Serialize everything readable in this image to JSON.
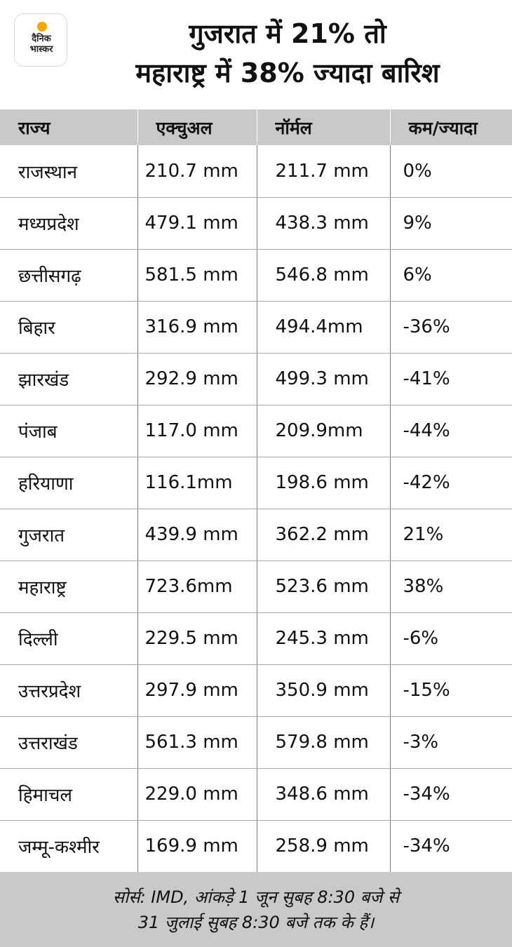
{
  "logo": {
    "line1": "दैनिक",
    "line2": "भास्कर",
    "accent": "#f7a600"
  },
  "title": {
    "line1": "गुजरात में 21% तो",
    "line2": "महाराष्ट्र में 38% ज्यादा बारिश"
  },
  "table": {
    "headers": [
      "राज्य",
      "एक्चुअल",
      "नॉर्मल",
      "कम/ज्यादा"
    ],
    "rows": [
      [
        "राजस्थान",
        "210.7 mm",
        "211.7 mm",
        "0%"
      ],
      [
        "मध्यप्रदेश",
        "479.1 mm",
        "438.3 mm",
        "9%"
      ],
      [
        "छत्तीसगढ़",
        "581.5 mm",
        "546.8 mm",
        "6%"
      ],
      [
        "बिहार",
        "316.9 mm",
        "494.4mm",
        "-36%"
      ],
      [
        "झारखंड",
        "292.9 mm",
        "499.3 mm",
        "-41%"
      ],
      [
        "पंजाब",
        "117.0 mm",
        "209.9mm",
        "-44%"
      ],
      [
        "हरियाणा",
        "116.1mm",
        "198.6 mm",
        "-42%"
      ],
      [
        "गुजरात",
        "439.9 mm",
        "362.2 mm",
        "21%"
      ],
      [
        "महाराष्ट्र",
        "723.6mm",
        "523.6 mm",
        "38%"
      ],
      [
        "दिल्ली",
        "229.5 mm",
        "245.3 mm",
        "-6%"
      ],
      [
        "उत्तरप्रदेश",
        "297.9 mm",
        "350.9 mm",
        "-15%"
      ],
      [
        "उत्तराखंड",
        "561.3 mm",
        "579.8 mm",
        "-3%"
      ],
      [
        "हिमाचल",
        "229.0 mm",
        "348.6 mm",
        "-34%"
      ],
      [
        "जम्मू-कश्मीर",
        "169.9 mm",
        "258.9 mm",
        "-34%"
      ]
    ]
  },
  "footer": {
    "line1": "सोर्स: IMD, आंकड़े 1 जून सुबह 8:30 बजे से",
    "line2": "31 जुलाई सुबह 8:30 बजे तक के हैं।"
  }
}
